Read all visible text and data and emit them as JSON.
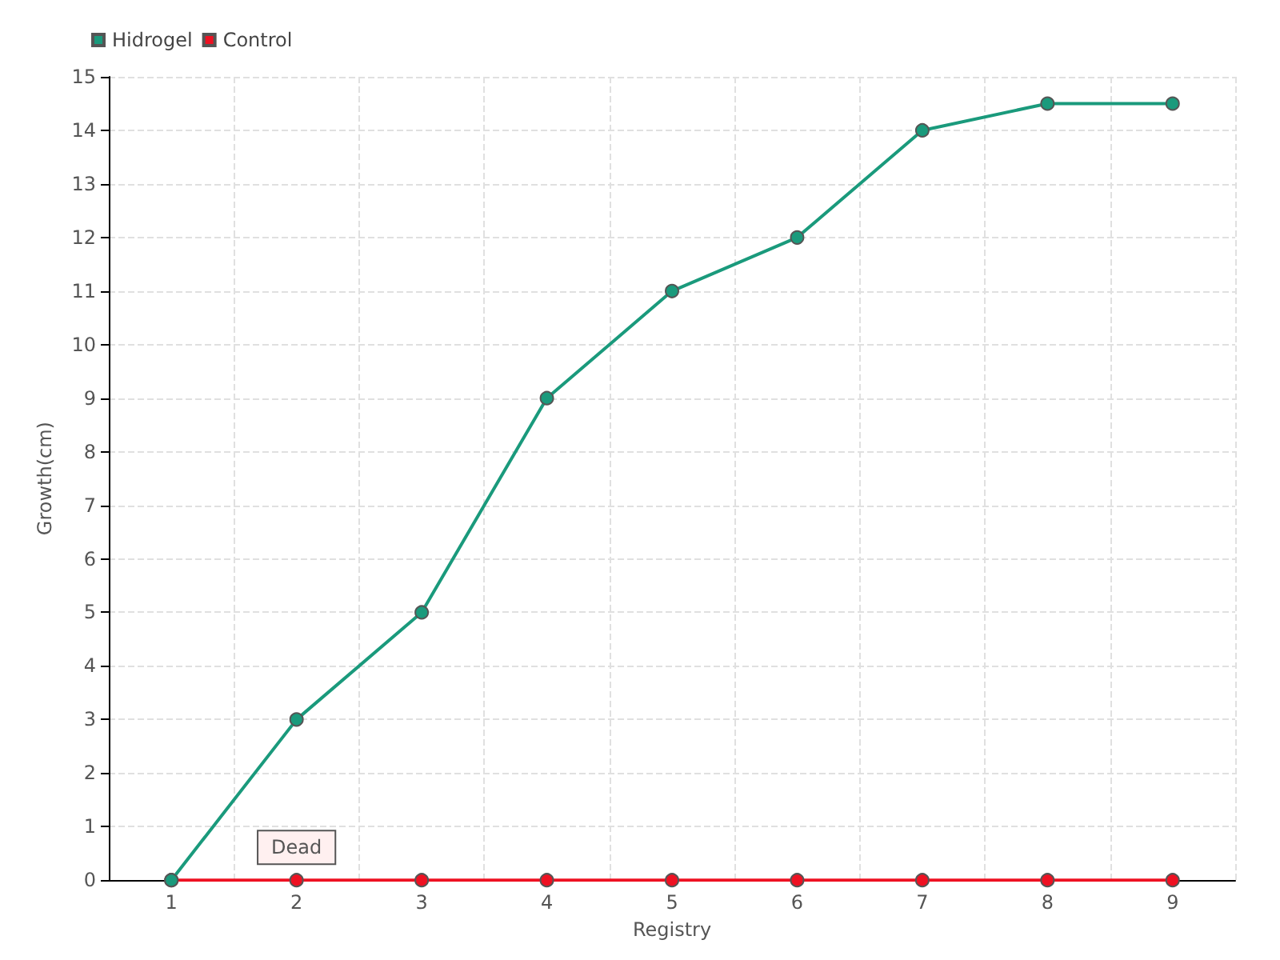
{
  "chart_data": {
    "type": "line",
    "xlabel": "Registry",
    "ylabel": "Growth(cm)",
    "categories": [
      "1",
      "2",
      "3",
      "4",
      "5",
      "6",
      "7",
      "8",
      "9"
    ],
    "series": [
      {
        "name": "Hidrogel",
        "color": "#1a9a7c",
        "values": [
          0,
          3,
          5,
          9,
          11,
          12,
          14,
          14.5,
          14.5
        ]
      },
      {
        "name": "Control",
        "color": "#ee1122",
        "values": [
          0,
          0,
          0,
          0,
          0,
          0,
          0,
          0,
          0
        ]
      }
    ],
    "ylim": [
      0,
      15
    ],
    "yticks": [
      0,
      1,
      2,
      3,
      4,
      5,
      6,
      7,
      8,
      9,
      10,
      11,
      12,
      13,
      14,
      15
    ],
    "grid": true,
    "legend": "top left",
    "marker": "circle",
    "line_style": "solid",
    "annotations": [
      {
        "text": "Dead",
        "x": "2",
        "y": 0
      }
    ]
  }
}
